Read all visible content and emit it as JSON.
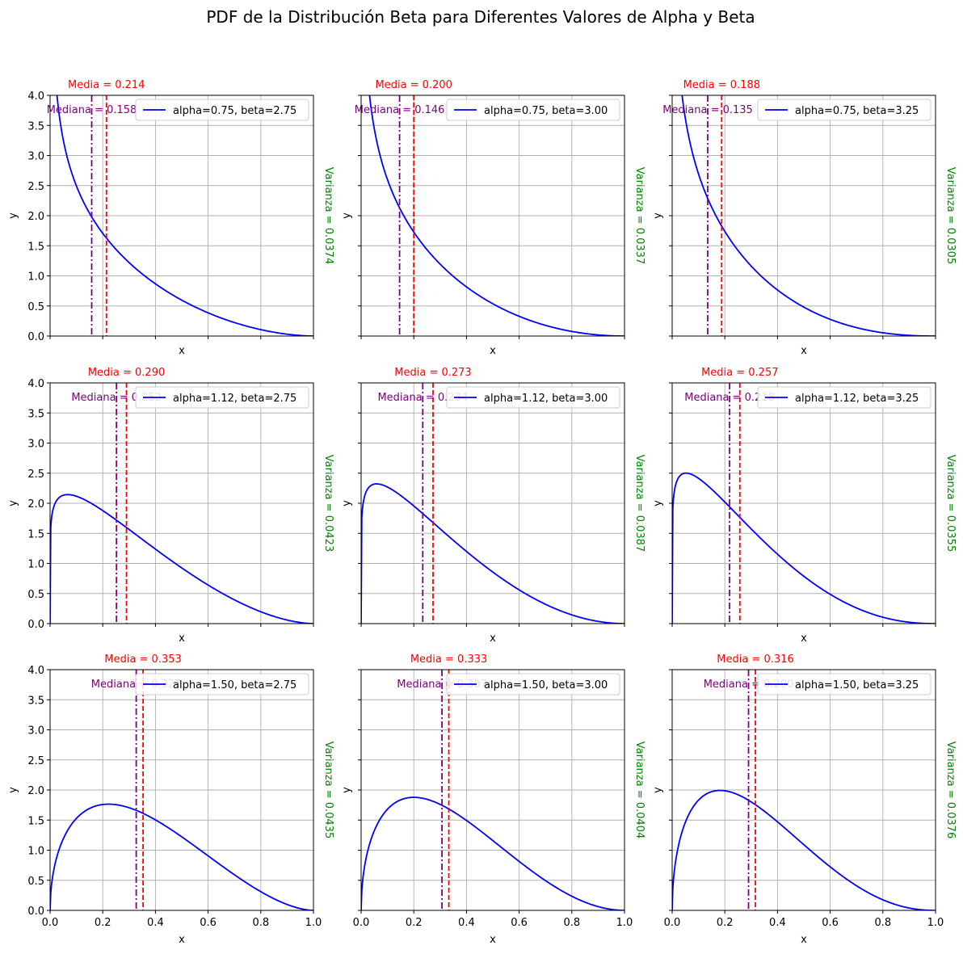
{
  "figure": {
    "title": "PDF de la Distribución Beta para Diferentes Valores de Alpha y Beta",
    "colors": {
      "pdf": "#0000ff",
      "mean": "#ff0000",
      "median": "#800080",
      "variance": "#008000",
      "grid": "#b0b0b0"
    }
  },
  "chart_data": [
    {
      "type": "line",
      "alpha": 0.75,
      "beta": 2.75,
      "legend": "alpha=0.75, beta=2.75",
      "mean_label": "Media = 0.214",
      "mean": 0.214,
      "median_label": "Mediana = 0.158",
      "median": 0.158,
      "variance_label": "Varianza = 0.0374",
      "xlabel": "x",
      "ylabel": "y",
      "xlim": [
        0,
        1
      ],
      "ylim": [
        0,
        4
      ],
      "grid": true,
      "legend_position": "top-right",
      "xticks": [
        "0.0",
        "0.2",
        "0.4",
        "0.6",
        "0.8",
        "1.0"
      ],
      "yticks": [
        "0.0",
        "0.5",
        "1.0",
        "1.5",
        "2.0",
        "2.5",
        "3.0",
        "3.5",
        "4.0"
      ]
    },
    {
      "type": "line",
      "alpha": 0.75,
      "beta": 3.0,
      "legend": "alpha=0.75, beta=3.00",
      "mean_label": "Media = 0.200",
      "mean": 0.2,
      "median_label": "Mediana = 0.146",
      "median": 0.146,
      "variance_label": "Varianza = 0.0337",
      "xlabel": "x",
      "ylabel": "y",
      "xlim": [
        0,
        1
      ],
      "ylim": [
        0,
        4
      ],
      "grid": true,
      "legend_position": "top-right",
      "xticks": [
        "0.0",
        "0.2",
        "0.4",
        "0.6",
        "0.8",
        "1.0"
      ],
      "yticks": [
        "0.0",
        "0.5",
        "1.0",
        "1.5",
        "2.0",
        "2.5",
        "3.0",
        "3.5",
        "4.0"
      ]
    },
    {
      "type": "line",
      "alpha": 0.75,
      "beta": 3.25,
      "legend": "alpha=0.75, beta=3.25",
      "mean_label": "Media = 0.188",
      "mean": 0.188,
      "median_label": "Mediana = 0.135",
      "median": 0.135,
      "variance_label": "Varianza = 0.0305",
      "xlabel": "x",
      "ylabel": "y",
      "xlim": [
        0,
        1
      ],
      "ylim": [
        0,
        4
      ],
      "grid": true,
      "legend_position": "top-right",
      "xticks": [
        "0.0",
        "0.2",
        "0.4",
        "0.6",
        "0.8",
        "1.0"
      ],
      "yticks": [
        "0.0",
        "0.5",
        "1.0",
        "1.5",
        "2.0",
        "2.5",
        "3.0",
        "3.5",
        "4.0"
      ]
    },
    {
      "type": "line",
      "alpha": 1.125,
      "beta": 2.75,
      "legend": "alpha=1.12, beta=2.75",
      "mean_label": "Media = 0.290",
      "mean": 0.29,
      "median_label": "Mediana = 0.252",
      "median": 0.252,
      "variance_label": "Varianza = 0.0423",
      "xlabel": "x",
      "ylabel": "y",
      "xlim": [
        0,
        1
      ],
      "ylim": [
        0,
        4
      ],
      "grid": true,
      "legend_position": "top-right",
      "xticks": [
        "0.0",
        "0.2",
        "0.4",
        "0.6",
        "0.8",
        "1.0"
      ],
      "yticks": [
        "0.0",
        "0.5",
        "1.0",
        "1.5",
        "2.0",
        "2.5",
        "3.0",
        "3.5",
        "4.0"
      ]
    },
    {
      "type": "line",
      "alpha": 1.125,
      "beta": 3.0,
      "legend": "alpha=1.12, beta=3.00",
      "mean_label": "Media = 0.273",
      "mean": 0.273,
      "median_label": "Mediana = 0.234",
      "median": 0.234,
      "variance_label": "Varianza = 0.0387",
      "xlabel": "x",
      "ylabel": "y",
      "xlim": [
        0,
        1
      ],
      "ylim": [
        0,
        4
      ],
      "grid": true,
      "legend_position": "top-right",
      "xticks": [
        "0.0",
        "0.2",
        "0.4",
        "0.6",
        "0.8",
        "1.0"
      ],
      "yticks": [
        "0.0",
        "0.5",
        "1.0",
        "1.5",
        "2.0",
        "2.5",
        "3.0",
        "3.5",
        "4.0"
      ]
    },
    {
      "type": "line",
      "alpha": 1.125,
      "beta": 3.25,
      "legend": "alpha=1.12, beta=3.25",
      "mean_label": "Media = 0.257",
      "mean": 0.257,
      "median_label": "Mediana = 0.218",
      "median": 0.218,
      "variance_label": "Varianza = 0.0355",
      "xlabel": "x",
      "ylabel": "y",
      "xlim": [
        0,
        1
      ],
      "ylim": [
        0,
        4
      ],
      "grid": true,
      "legend_position": "top-right",
      "xticks": [
        "0.0",
        "0.2",
        "0.4",
        "0.6",
        "0.8",
        "1.0"
      ],
      "yticks": [
        "0.0",
        "0.5",
        "1.0",
        "1.5",
        "2.0",
        "2.5",
        "3.0",
        "3.5",
        "4.0"
      ]
    },
    {
      "type": "line",
      "alpha": 1.5,
      "beta": 2.75,
      "legend": "alpha=1.50, beta=2.75",
      "mean_label": "Media = 0.353",
      "mean": 0.353,
      "median_label": "Mediana = 0.327",
      "median": 0.327,
      "variance_label": "Varianza = 0.0435",
      "xlabel": "x",
      "ylabel": "y",
      "xlim": [
        0,
        1
      ],
      "ylim": [
        0,
        4
      ],
      "grid": true,
      "legend_position": "top-right",
      "xticks": [
        "0.0",
        "0.2",
        "0.4",
        "0.6",
        "0.8",
        "1.0"
      ],
      "yticks": [
        "0.0",
        "0.5",
        "1.0",
        "1.5",
        "2.0",
        "2.5",
        "3.0",
        "3.5",
        "4.0"
      ]
    },
    {
      "type": "line",
      "alpha": 1.5,
      "beta": 3.0,
      "legend": "alpha=1.50, beta=3.00",
      "mean_label": "Media = 0.333",
      "mean": 0.333,
      "median_label": "Mediana = 0.307",
      "median": 0.307,
      "variance_label": "Varianza = 0.0404",
      "xlabel": "x",
      "ylabel": "y",
      "xlim": [
        0,
        1
      ],
      "ylim": [
        0,
        4
      ],
      "grid": true,
      "legend_position": "top-right",
      "xticks": [
        "0.0",
        "0.2",
        "0.4",
        "0.6",
        "0.8",
        "1.0"
      ],
      "yticks": [
        "0.0",
        "0.5",
        "1.0",
        "1.5",
        "2.0",
        "2.5",
        "3.0",
        "3.5",
        "4.0"
      ]
    },
    {
      "type": "line",
      "alpha": 1.5,
      "beta": 3.25,
      "legend": "alpha=1.50, beta=3.25",
      "mean_label": "Media = 0.316",
      "mean": 0.316,
      "median_label": "Mediana = 0.290",
      "median": 0.29,
      "variance_label": "Varianza = 0.0376",
      "xlabel": "x",
      "ylabel": "y",
      "xlim": [
        0,
        1
      ],
      "ylim": [
        0,
        4
      ],
      "grid": true,
      "legend_position": "top-right",
      "xticks": [
        "0.0",
        "0.2",
        "0.4",
        "0.6",
        "0.8",
        "1.0"
      ],
      "yticks": [
        "0.0",
        "0.5",
        "1.0",
        "1.5",
        "2.0",
        "2.5",
        "3.0",
        "3.5",
        "4.0"
      ]
    }
  ]
}
